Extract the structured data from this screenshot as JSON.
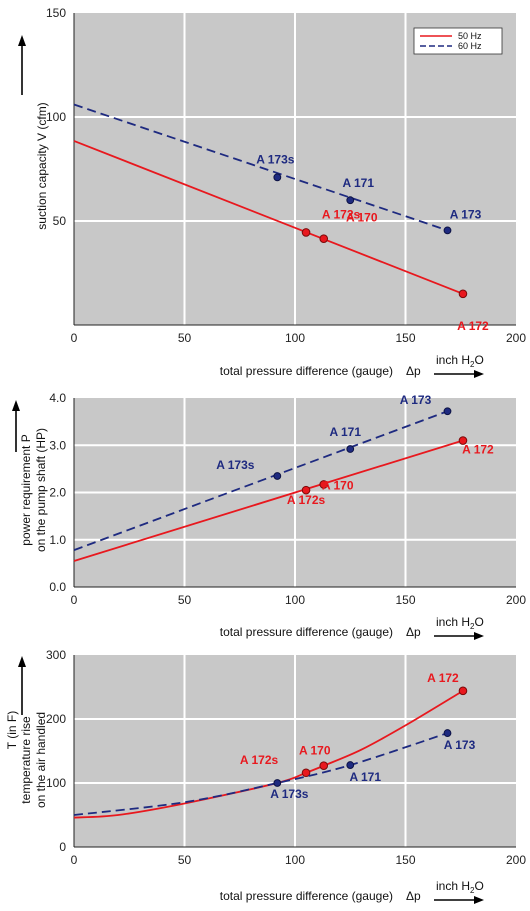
{
  "chart_data": [
    {
      "type": "line",
      "title": "",
      "ylabel": "suction capacity V (cfm)",
      "xlabel": "total pressure difference (gauge)",
      "xlabel_symbol": "Δp",
      "unit_prefix": "inch H",
      "unit_sub": "2",
      "unit_suffix": "O",
      "xlim": [
        0,
        200
      ],
      "ylim": [
        0,
        150
      ],
      "xticks": [
        0,
        50,
        100,
        150,
        200
      ],
      "yticks": [
        50,
        100,
        150
      ],
      "ytick_labels": [
        "50",
        "100",
        "150"
      ],
      "grid": true,
      "legend": {
        "placement": "top-right",
        "entries": [
          "50 Hz",
          "60 Hz"
        ]
      },
      "series": [
        {
          "name": "50 Hz",
          "color": "#e8181e",
          "dash": "solid",
          "x": [
            0,
            176
          ],
          "y": [
            88.5,
            15
          ],
          "markers": [
            {
              "label": "A 172s",
              "x": 105,
              "y": 44.5
            },
            {
              "label": "A 170",
              "x": 113,
              "y": 41.5
            },
            {
              "label": "A 172",
              "x": 176,
              "y": 15
            }
          ]
        },
        {
          "name": "60 Hz",
          "color": "#1e2a80",
          "dash": "dashed",
          "x": [
            0,
            169
          ],
          "y": [
            106,
            45.5
          ],
          "markers": [
            {
              "label": "A 173s",
              "x": 92,
              "y": 71
            },
            {
              "label": "A 171",
              "x": 125,
              "y": 60
            },
            {
              "label": "A 173",
              "x": 169,
              "y": 45.5
            }
          ]
        }
      ]
    },
    {
      "type": "line",
      "title": "",
      "ylabel": "power requirement P",
      "ylabel2": "on the pump shaft (HP)",
      "xlabel": "total pressure difference (gauge)",
      "xlabel_symbol": "Δp",
      "unit_prefix": "inch H",
      "unit_sub": "2",
      "unit_suffix": "O",
      "xlim": [
        0,
        200
      ],
      "ylim": [
        0,
        4
      ],
      "xticks": [
        0,
        50,
        100,
        150,
        200
      ],
      "yticks": [
        0,
        1,
        2,
        3,
        4
      ],
      "ytick_labels": [
        "0.0",
        "1.0",
        "2.0",
        "3.0",
        "4.0"
      ],
      "grid": true,
      "series": [
        {
          "name": "",
          "color": "#e8181e",
          "dash": "solid",
          "x": [
            0,
            176
          ],
          "y": [
            0.55,
            3.1
          ],
          "markers": [
            {
              "label": "A 172s",
              "x": 105,
              "y": 2.05
            },
            {
              "label": "A 170",
              "x": 113,
              "y": 2.17
            },
            {
              "label": "A 172",
              "x": 176,
              "y": 3.1
            }
          ]
        },
        {
          "name": "",
          "color": "#1e2a80",
          "dash": "dashed",
          "x": [
            0,
            169
          ],
          "y": [
            0.78,
            3.72
          ],
          "markers": [
            {
              "label": "A 173s",
              "x": 92,
              "y": 2.35
            },
            {
              "label": "A 171",
              "x": 125,
              "y": 2.92
            },
            {
              "label": "A 173",
              "x": 169,
              "y": 3.72
            }
          ]
        }
      ]
    },
    {
      "type": "line",
      "title": "",
      "ylabel": "temperature rise",
      "ylabel2": "on the air handled",
      "ylabel_symbol": "T   (in F)",
      "xlabel": "total pressure difference (gauge)",
      "xlabel_symbol": "Δp",
      "unit_prefix": "inch H",
      "unit_sub": "2",
      "unit_suffix": "O",
      "xlim": [
        0,
        200
      ],
      "ylim": [
        0,
        300
      ],
      "xticks": [
        0,
        50,
        100,
        150,
        200
      ],
      "yticks": [
        0,
        100,
        200,
        300
      ],
      "ytick_labels": [
        "0",
        "100",
        "200",
        "300"
      ],
      "grid": true,
      "series": [
        {
          "name": "",
          "color": "#e8181e",
          "dash": "solid",
          "x": [
            0,
            20,
            50,
            92,
            105,
            113,
            130,
            150,
            176
          ],
          "y": [
            46,
            50,
            68,
            100,
            116,
            127,
            152,
            190,
            244
          ],
          "markers": [
            {
              "label": "A 172s",
              "x": 105,
              "y": 116
            },
            {
              "label": "A 170",
              "x": 113,
              "y": 127
            },
            {
              "label": "A 172",
              "x": 176,
              "y": 244
            }
          ]
        },
        {
          "name": "",
          "color": "#1e2a80",
          "dash": "dashed",
          "x": [
            0,
            50,
            92,
            125,
            169
          ],
          "y": [
            50,
            70,
            100,
            128,
            178
          ],
          "markers": [
            {
              "label": "A 173s",
              "x": 92,
              "y": 100
            },
            {
              "label": "A 171",
              "x": 125,
              "y": 128
            },
            {
              "label": "A 173",
              "x": 169,
              "y": 178
            }
          ]
        }
      ]
    }
  ]
}
